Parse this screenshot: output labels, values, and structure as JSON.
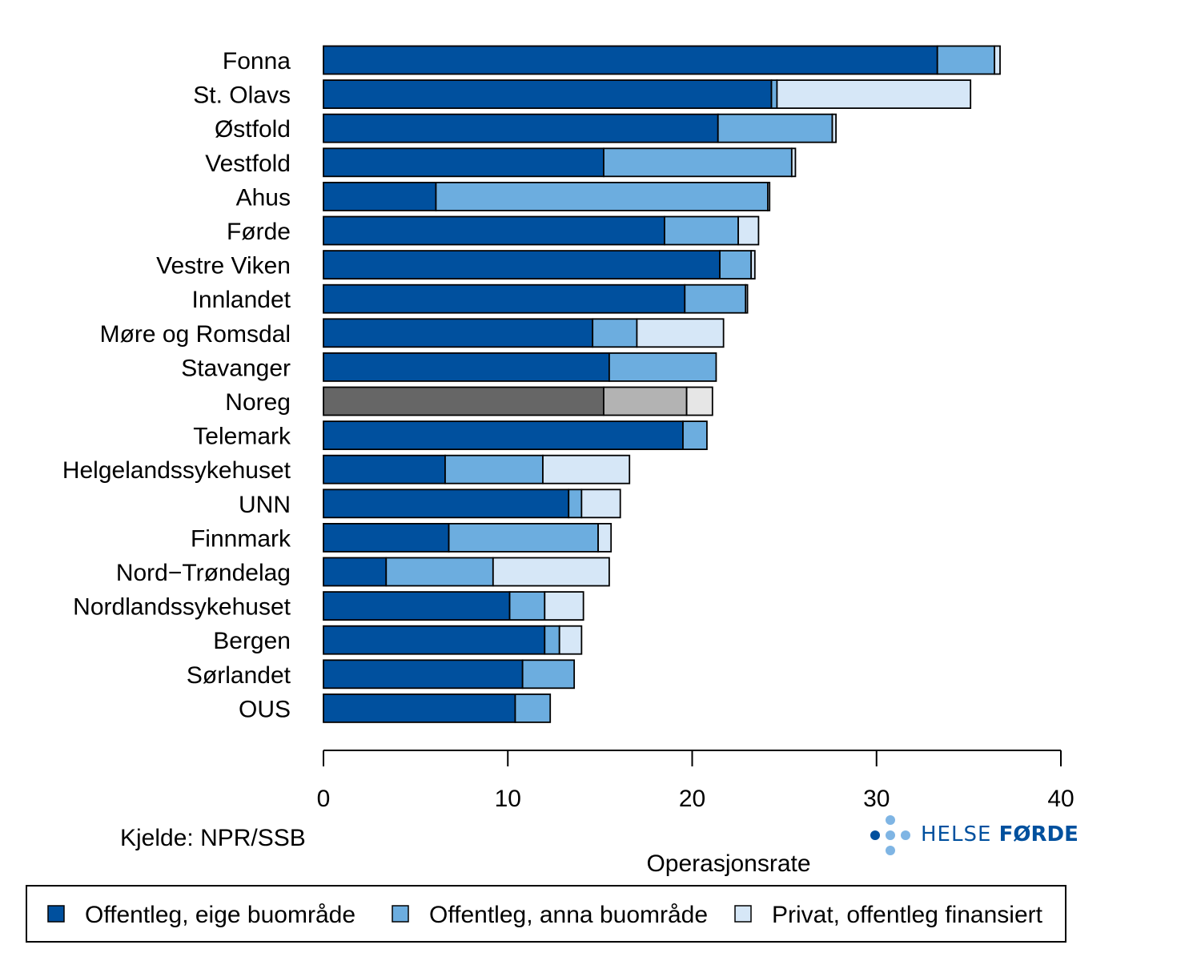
{
  "chart_data": {
    "type": "bar",
    "orientation": "horizontal",
    "stacked": true,
    "categories": [
      "Fonna",
      "St. Olavs",
      "Østfold",
      "Vestfold",
      "Ahus",
      "Førde",
      "Vestre Viken",
      "Innlandet",
      "Møre og Romsdal",
      "Stavanger",
      "Noreg",
      "Telemark",
      "Helgelandssykehuset",
      "UNN",
      "Finnmark",
      "Nord−Trøndelag",
      "Nordlandssykehuset",
      "Bergen",
      "Sørlandet",
      "OUS"
    ],
    "series": [
      {
        "name": "Offentleg, eige buområde",
        "values": [
          33.3,
          24.3,
          21.4,
          15.2,
          6.1,
          18.5,
          21.5,
          19.6,
          14.6,
          15.5,
          15.2,
          19.5,
          6.6,
          13.3,
          6.8,
          3.4,
          10.1,
          12.0,
          10.8,
          10.4
        ]
      },
      {
        "name": "Offentleg, anna buområde",
        "values": [
          3.1,
          0.3,
          6.2,
          10.2,
          18.0,
          4.0,
          1.7,
          3.3,
          2.4,
          5.8,
          4.5,
          1.3,
          5.3,
          0.7,
          8.1,
          5.8,
          1.9,
          0.8,
          2.8,
          1.9
        ]
      },
      {
        "name": "Privat, offentleg finansiert",
        "values": [
          0.3,
          10.5,
          0.2,
          0.2,
          0.1,
          1.1,
          0.2,
          0.1,
          4.7,
          0.0,
          1.4,
          0.0,
          4.7,
          2.1,
          0.7,
          6.3,
          2.1,
          1.2,
          0.0,
          0.0
        ]
      }
    ],
    "highlight_category": "Noreg",
    "xlabel": "Operasjonsrate",
    "xlim": [
      0,
      40
    ],
    "xticks": [
      0,
      10,
      20,
      30,
      40
    ],
    "grid": false,
    "legend_position": "bottom",
    "colors": {
      "series": [
        "#00509E",
        "#6CADDF",
        "#D6E7F7"
      ],
      "highlight": [
        "#666666",
        "#B3B3B3",
        "#E6E6E6"
      ],
      "outline": "#000000"
    }
  },
  "source": "Kjelde: NPR/SSB",
  "logo": {
    "text_light": "HELSE ",
    "text_bold": "FØRDE",
    "icon": "cross-dots-icon"
  }
}
